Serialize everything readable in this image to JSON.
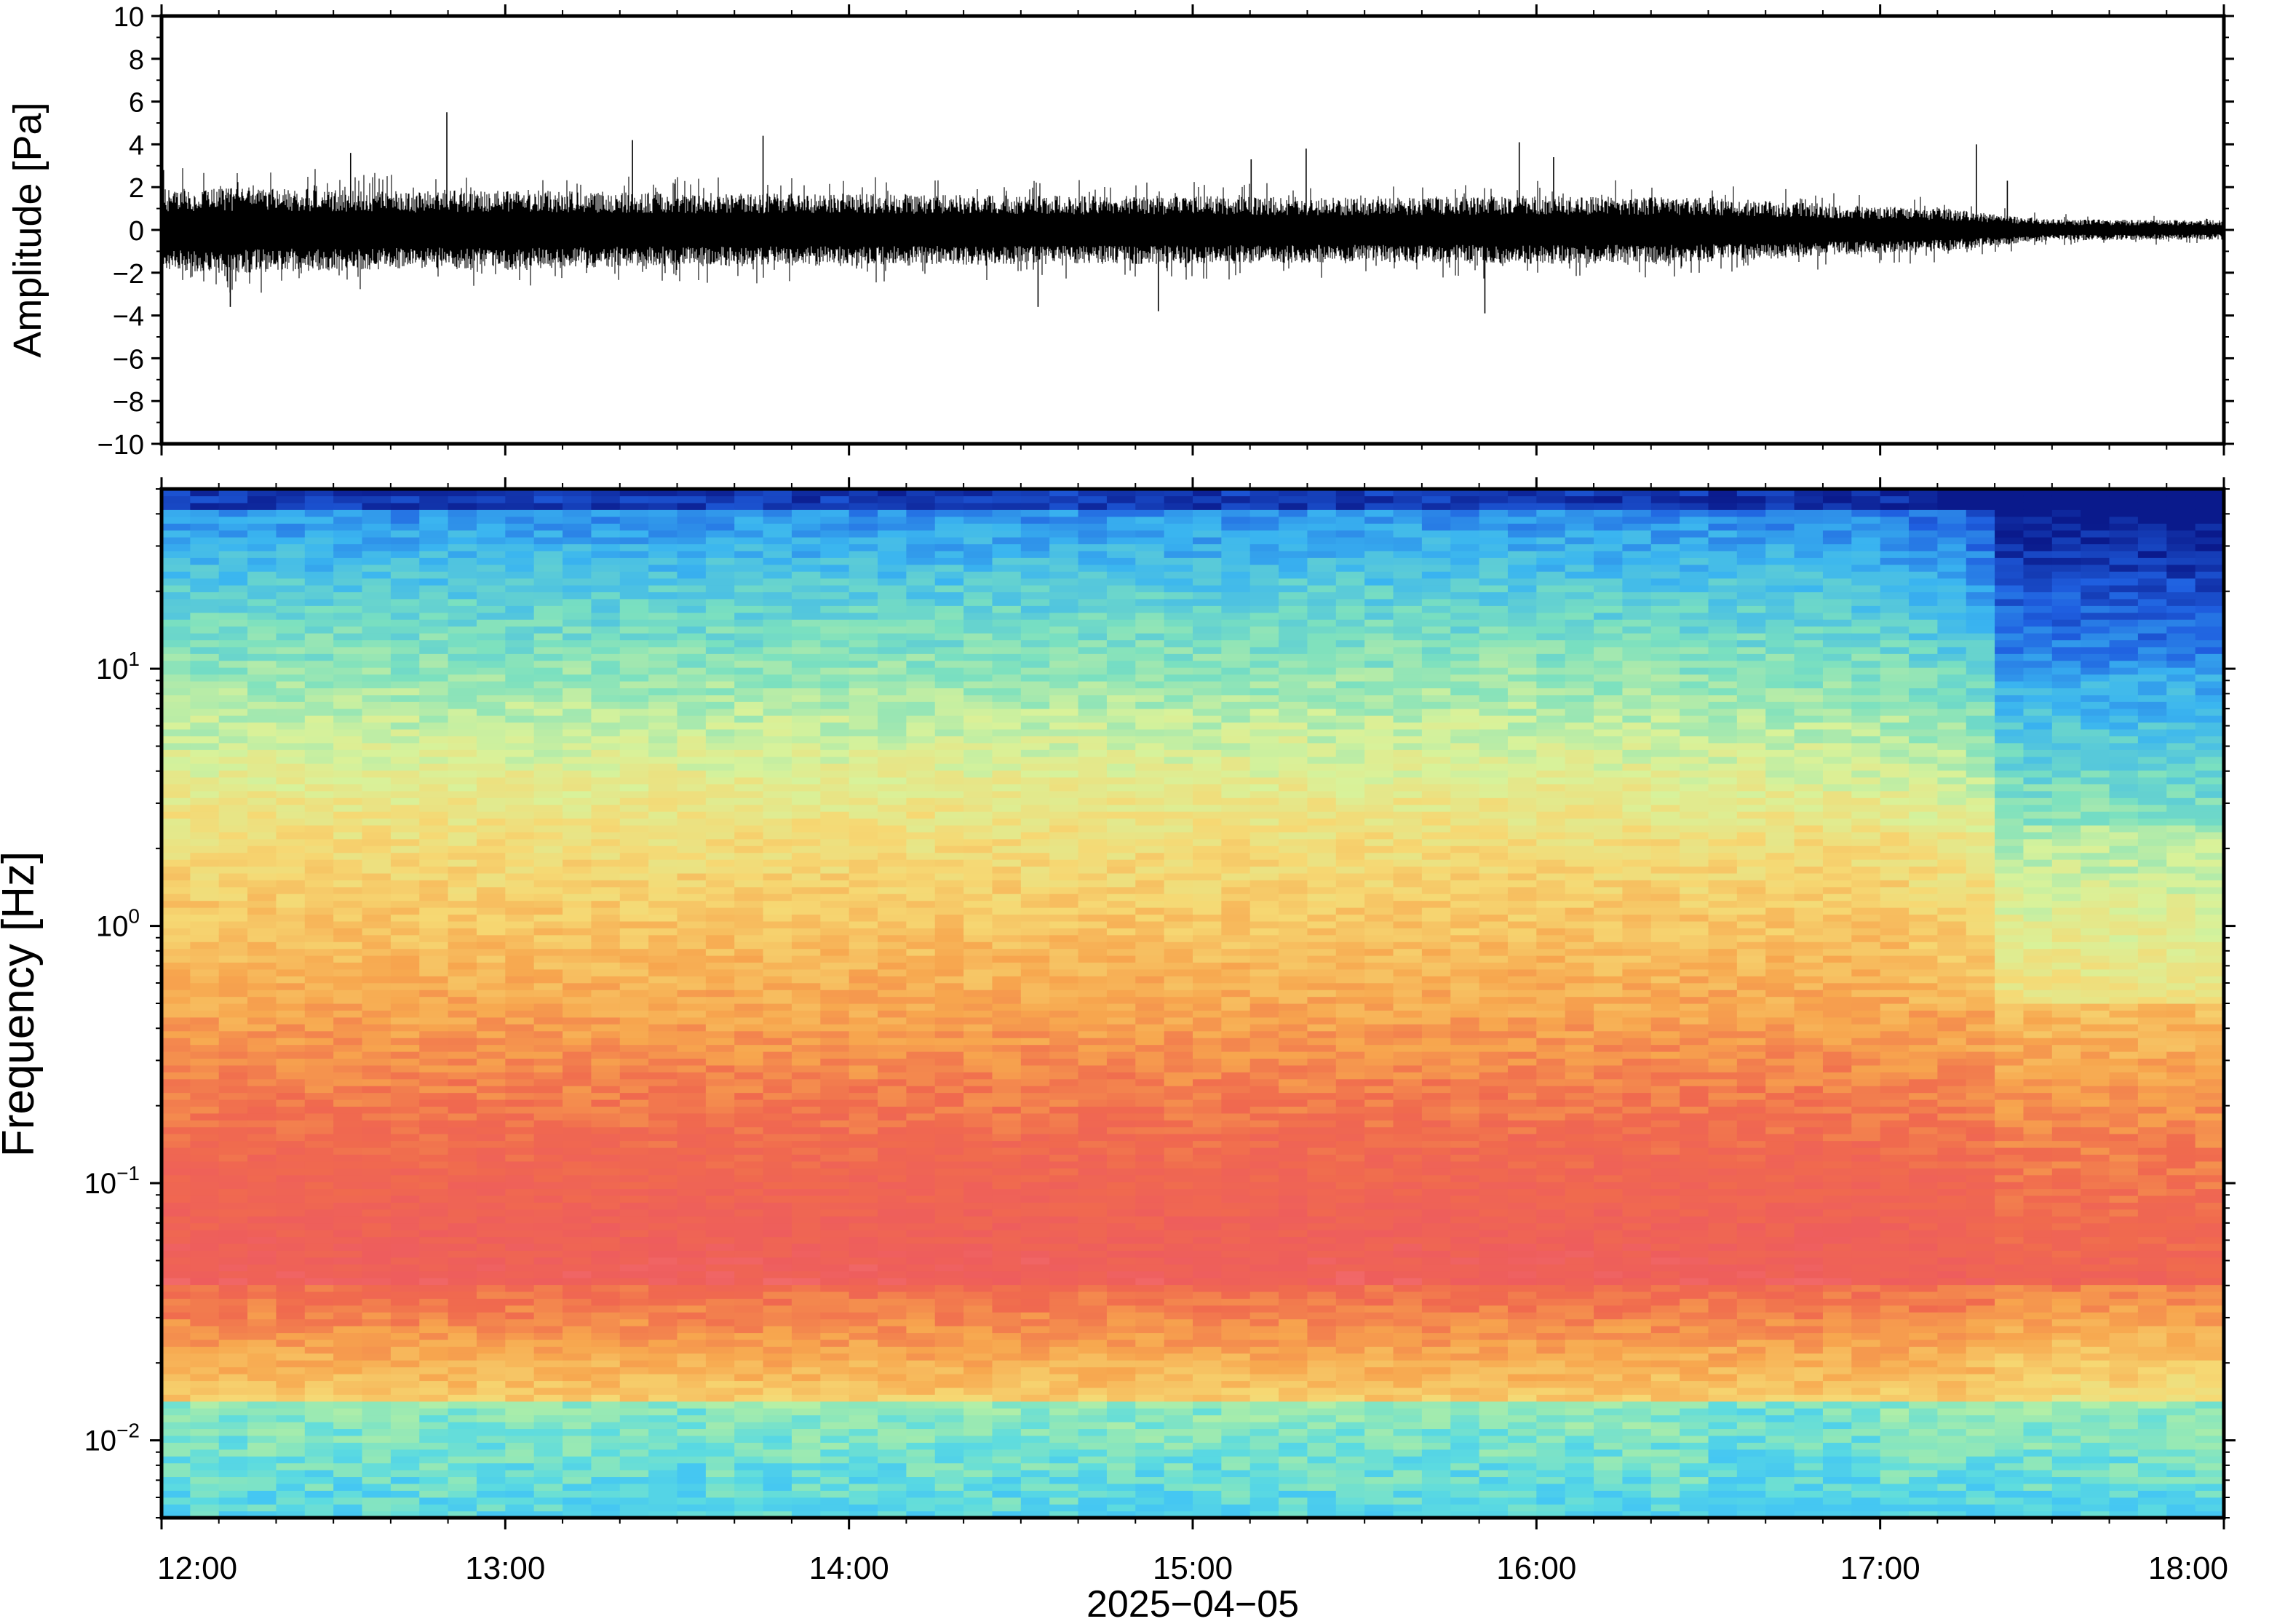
{
  "chart_data": [
    {
      "type": "line",
      "panel": "waveform",
      "ylabel": "Amplitude [Pa]",
      "ylim": [
        -10,
        10
      ],
      "yticks": [
        10,
        8,
        6,
        4,
        2,
        0,
        -2,
        -4,
        -6,
        -8,
        -10
      ],
      "ytick_labels": [
        "10",
        "8",
        "6",
        "4",
        "2",
        "0",
        "−2",
        "−4",
        "−6",
        "−8",
        "−10"
      ],
      "xlim": [
        "12:00",
        "18:00"
      ],
      "series_color": "#000000",
      "envelope_hours": [
        0,
        0.25,
        0.5,
        0.75,
        1,
        1.5,
        2,
        2.5,
        3,
        3.5,
        4,
        4.5,
        5,
        5.2,
        5.3,
        5.5,
        6
      ],
      "envelope_pa": [
        1.9,
        2.0,
        1.9,
        1.8,
        1.9,
        1.7,
        1.7,
        1.6,
        1.6,
        1.5,
        1.6,
        1.5,
        1.1,
        1.0,
        0.8,
        0.5,
        0.45
      ],
      "spikes": [
        {
          "hour": 0.83,
          "value": 5.5
        },
        {
          "hour": 0.55,
          "value": 3.6
        },
        {
          "hour": 1.37,
          "value": 4.2
        },
        {
          "hour": 1.75,
          "value": 4.4
        },
        {
          "hour": 3.17,
          "value": 3.3
        },
        {
          "hour": 3.33,
          "value": 3.8
        },
        {
          "hour": 3.85,
          "value": -3.9
        },
        {
          "hour": 3.95,
          "value": 4.1
        },
        {
          "hour": 4.05,
          "value": 3.4
        },
        {
          "hour": 5.28,
          "value": 4.0
        },
        {
          "hour": 5.37,
          "value": 2.3
        },
        {
          "hour": 0.2,
          "value": -3.6
        },
        {
          "hour": 2.55,
          "value": -3.6
        },
        {
          "hour": 2.9,
          "value": -3.8
        }
      ]
    },
    {
      "type": "heatmap",
      "panel": "spectrogram",
      "ylabel": "Frequency [Hz]",
      "yscale": "log",
      "ylim": [
        0.005,
        50
      ],
      "yticks": [
        10,
        1,
        0.1,
        0.01
      ],
      "ytick_labels": [
        {
          "base": "10",
          "exp": "1"
        },
        {
          "base": "10",
          "exp": "0"
        },
        {
          "base": "10",
          "exp": "−1"
        },
        {
          "base": "10",
          "exp": "−2"
        }
      ],
      "xlabel": "2025−04−05",
      "xticks": [
        "12:00",
        "13:00",
        "14:00",
        "15:00",
        "16:00",
        "17:00",
        "18:00"
      ],
      "colormap": [
        "#0a1a8c",
        "#1f5fe0",
        "#3ab5f0",
        "#7ae0c0",
        "#d8f29a",
        "#f6d873",
        "#f7a64e",
        "#f06a4e",
        "#ee5d5d",
        "#f98888"
      ],
      "low_frequency_colors": [
        "#c9f59e",
        "#a6ecac",
        "#8ae6bc",
        "#5cdbe0",
        "#45c7f2"
      ]
    }
  ]
}
